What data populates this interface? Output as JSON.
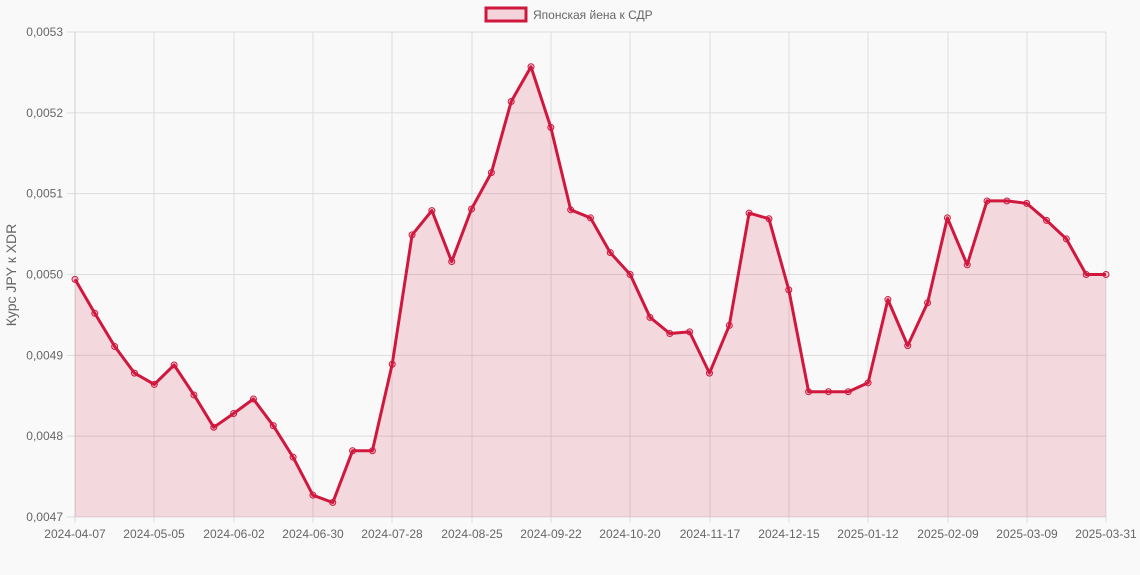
{
  "legend": {
    "label": "Японская йена к СДР",
    "swatch_fill": "#f5d3da",
    "swatch_stroke": "#d0183f"
  },
  "colors": {
    "line": "#d0183f",
    "fill": "rgba(208,24,63,0.15)",
    "grid": "#dddddd",
    "background": "#f9f9f9"
  },
  "chart_data": {
    "type": "area",
    "title": "",
    "legend_position": "top",
    "xlabel": "",
    "ylabel": "Курс JPY к XDR",
    "ylim": [
      0.0047,
      0.0053
    ],
    "grid": true,
    "y_ticks": [
      "0,0053",
      "0,0052",
      "0,0051",
      "0,0050",
      "0,0049",
      "0,0048",
      "0,0047"
    ],
    "x_ticks": [
      "2024-04-07",
      "2024-05-05",
      "2024-06-02",
      "2024-06-30",
      "2024-07-28",
      "2024-08-25",
      "2024-09-22",
      "2024-10-20",
      "2024-11-17",
      "2024-12-15",
      "2025-01-12",
      "2025-02-09",
      "2025-03-09",
      "2025-03-31"
    ],
    "series": [
      {
        "name": "Японская йена к СДР",
        "values": [
          0.004994,
          0.004952,
          0.004911,
          0.004878,
          0.004864,
          0.004888,
          0.004851,
          0.004811,
          0.004828,
          0.004846,
          0.004813,
          0.004774,
          0.004727,
          0.004718,
          0.004782,
          0.004782,
          0.004889,
          0.005049,
          0.005079,
          0.005016,
          0.005081,
          0.005126,
          0.005214,
          0.005257,
          0.005182,
          0.00508,
          0.00507,
          0.005027,
          0.005,
          0.004947,
          0.004927,
          0.004929,
          0.004878,
          0.004937,
          0.005076,
          0.005069,
          0.004981,
          0.004855,
          0.004855,
          0.004855,
          0.004866,
          0.004969,
          0.004912,
          0.004965,
          0.00507,
          0.005012,
          0.005091,
          0.005091,
          0.005088,
          0.005067,
          0.005044,
          0.005,
          0.005
        ]
      }
    ]
  }
}
